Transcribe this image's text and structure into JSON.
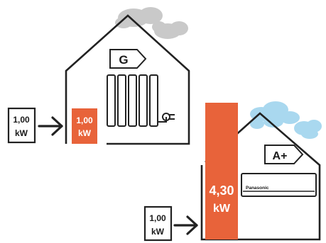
{
  "colors": {
    "outline": "#222222",
    "heat_bar": "#e8633a",
    "heat_bar_text": "#ffffff",
    "smoke_cloud": "#c9c9c9",
    "sky_cloud": "#a9d8ef",
    "label_text": "#1a1a1a"
  },
  "left_system": {
    "name": "electric-radiator-house",
    "energy_class": "G",
    "input": {
      "value": "1,00",
      "unit": "kW"
    },
    "output": {
      "value": "1,00",
      "unit": "kW"
    }
  },
  "right_system": {
    "name": "heat-pump-house",
    "energy_class": "A+",
    "device_brand": "Panasonic",
    "input": {
      "value": "1,00",
      "unit": "kW"
    },
    "output": {
      "value": "4,30",
      "unit": "kW"
    }
  },
  "icons": [
    "cloud-icon",
    "house-icon",
    "radiator-icon",
    "plug-icon",
    "arrow-icon",
    "air-conditioner-icon",
    "energy-label-icon"
  ]
}
